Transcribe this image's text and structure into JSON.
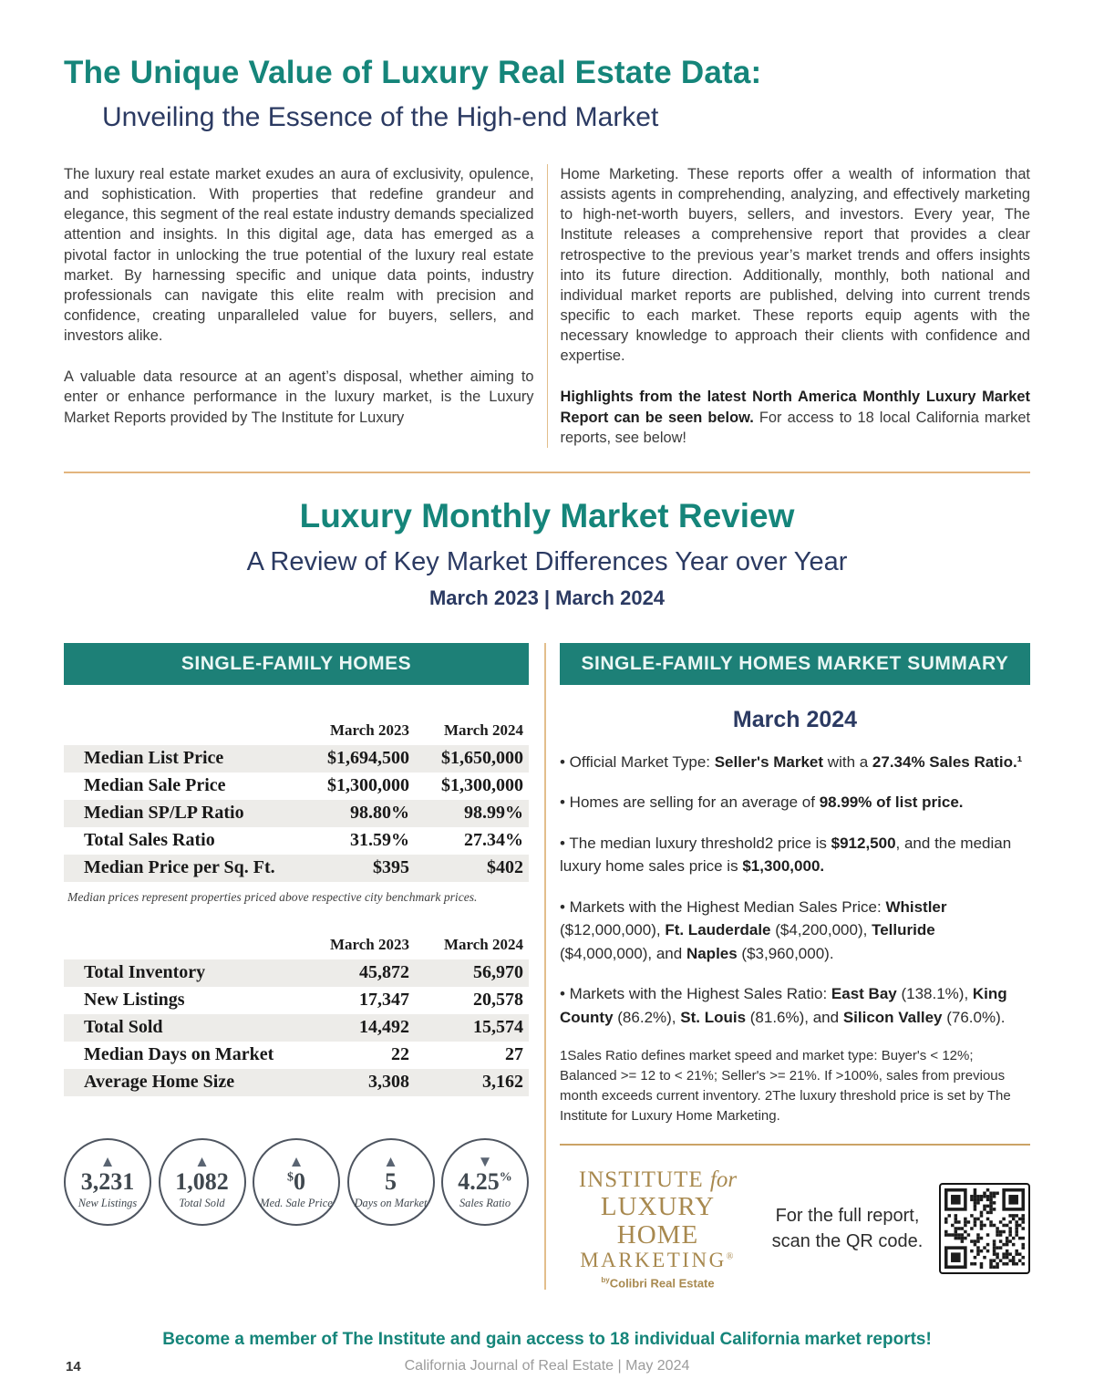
{
  "page": {
    "title": "The Unique Value of Luxury Real Estate Data:",
    "subtitle": "Unveiling the Essence of the High-end Market",
    "membership_banner": "Become a member of The Institute and gain access to 18 individual California market reports!",
    "page_number": "14",
    "footer": "California Journal of Real Estate | May 2024"
  },
  "colors": {
    "teal_accent": "#15857A",
    "teal_bar": "#1D8077",
    "navy": "#2B3A62",
    "gold_rule": "#E3B57E",
    "gold_logo": "#A8894F",
    "row_shade": "#EDECE9"
  },
  "intro": {
    "left_p1": "The luxury real estate market exudes an aura of exclusivity, opulence, and sophistication. With properties that redefine grandeur and elegance, this segment of the real estate industry demands specialized attention and insights. In this digital age, data has emerged as a pivotal factor in unlocking the true potential of the luxury real estate market. By harnessing specific and unique data points, industry professionals can navigate this elite realm with precision and confidence, creating unparalleled value for buyers, sellers, and investors alike.",
    "left_p2": "A valuable data resource at an agent’s disposal, whether aiming to enter or enhance performance in the luxury market, is the Luxury Market Reports provided by The Institute for Luxury",
    "right_p1": "Home Marketing. These reports offer a wealth of information that assists agents in comprehending, analyzing, and effectively marketing to high-net-worth buyers, sellers, and investors. Every year, The Institute releases a comprehensive report that provides a clear retrospective to the previous year’s market trends and offers insights into its future direction. Additionally, monthly, both national and individual market reports are published, delving into current trends specific to each market. These reports equip agents with the necessary knowledge to approach their clients with confidence and expertise.",
    "right_p2_segments": [
      {
        "t": "Highlights from the latest North America Monthly Luxury Market Report can be seen below.",
        "b": true
      },
      {
        "t": " For access to 18 local California market reports, see below!",
        "b": false
      }
    ]
  },
  "review": {
    "title": "Luxury Monthly Market Review",
    "subtitle": "A Review of Key Market Differences Year over Year",
    "period": "March 2023 | March 2024"
  },
  "homes_panel": {
    "header": "SINGLE-FAMILY HOMES",
    "col_headers": [
      "March 2023",
      "March 2024"
    ],
    "table1": {
      "rows": [
        {
          "label": "Median List Price",
          "v2023": "$1,694,500",
          "v2024": "$1,650,000"
        },
        {
          "label": "Median Sale Price",
          "v2023": "$1,300,000",
          "v2024": "$1,300,000"
        },
        {
          "label": "Median SP/LP Ratio",
          "v2023": "98.80%",
          "v2024": "98.99%"
        },
        {
          "label": "Total Sales Ratio",
          "v2023": "31.59%",
          "v2024": "27.34%"
        },
        {
          "label": "Median Price per Sq. Ft.",
          "v2023": "$395",
          "v2024": "$402"
        }
      ]
    },
    "note": "Median prices represent properties priced above respective city benchmark prices.",
    "table2": {
      "rows": [
        {
          "label": "Total Inventory",
          "v2023": "45,872",
          "v2024": "56,970"
        },
        {
          "label": "New Listings",
          "v2023": "17,347",
          "v2024": "20,578"
        },
        {
          "label": "Total Sold",
          "v2023": "14,492",
          "v2024": "15,574"
        },
        {
          "label": "Median Days on Market",
          "v2023": "22",
          "v2024": "27"
        },
        {
          "label": "Average Home Size",
          "v2023": "3,308",
          "v2024": "3,162"
        }
      ]
    },
    "badges": [
      {
        "arrow": "▲",
        "value": "3,231",
        "label": "New Listings"
      },
      {
        "arrow": "▲",
        "value": "1,082",
        "label": "Total Sold"
      },
      {
        "arrow": "▲",
        "prefix": "$",
        "value": "0",
        "label": "Med. Sale Price"
      },
      {
        "arrow": "▲",
        "value": "5",
        "label": "Days on Market"
      },
      {
        "arrow": "▼",
        "value": "4.25",
        "suffix": "%",
        "label": "Sales Ratio"
      }
    ]
  },
  "summary_panel": {
    "header": "SINGLE-FAMILY HOMES MARKET SUMMARY",
    "month": "March 2024",
    "bullets": [
      [
        {
          "t": "• Official Market Type: ",
          "b": false
        },
        {
          "t": "Seller's Market",
          "b": true
        },
        {
          "t": " with a ",
          "b": false
        },
        {
          "t": "27.34% Sales Ratio.¹",
          "b": true
        }
      ],
      [
        {
          "t": "• Homes are selling for an average of ",
          "b": false
        },
        {
          "t": "98.99% of list price.",
          "b": true
        }
      ],
      [
        {
          "t": "• The median luxury threshold2 price is ",
          "b": false
        },
        {
          "t": "$912,500",
          "b": true
        },
        {
          "t": ", and the median luxury home sales price is ",
          "b": false
        },
        {
          "t": "$1,300,000.",
          "b": true
        }
      ],
      [
        {
          "t": "• Markets with the Highest Median Sales Price: ",
          "b": false
        },
        {
          "t": "Whistler",
          "b": true
        },
        {
          "t": " ($12,000,000), ",
          "b": false
        },
        {
          "t": "Ft. Lauderdale",
          "b": true
        },
        {
          "t": " ($4,200,000), ",
          "b": false
        },
        {
          "t": "Telluride",
          "b": true
        },
        {
          "t": " ($4,000,000), and ",
          "b": false
        },
        {
          "t": "Naples",
          "b": true
        },
        {
          "t": " ($3,960,000).",
          "b": false
        }
      ],
      [
        {
          "t": "• Markets with the Highest Sales Ratio: ",
          "b": false
        },
        {
          "t": "East Bay",
          "b": true
        },
        {
          "t": " (138.1%), ",
          "b": false
        },
        {
          "t": "King County",
          "b": true
        },
        {
          "t": " (86.2%), ",
          "b": false
        },
        {
          "t": "St. Louis",
          "b": true
        },
        {
          "t": " (81.6%), and ",
          "b": false
        },
        {
          "t": "Silicon Valley",
          "b": true
        },
        {
          "t": " (76.0%).",
          "b": false
        }
      ]
    ],
    "footnote": "1Sales Ratio defines market speed and market type: Buyer's < 12%; Balanced >= 12 to < 21%; Seller's >= 21%. If >100%, sales from previous month exceeds current inventory. 2The luxury threshold price is set by The Institute for Luxury Home Marketing.",
    "logo": {
      "institute": "INSTITUTE ",
      "for_word": "for",
      "luxury_home": "LUXURY HOME",
      "marketing": "MARKETING",
      "reg": "®",
      "by": "by",
      "colibri": "Colibri Real Estate"
    },
    "qr_caption_line1": "For the full report,",
    "qr_caption_line2": "scan the QR code."
  }
}
